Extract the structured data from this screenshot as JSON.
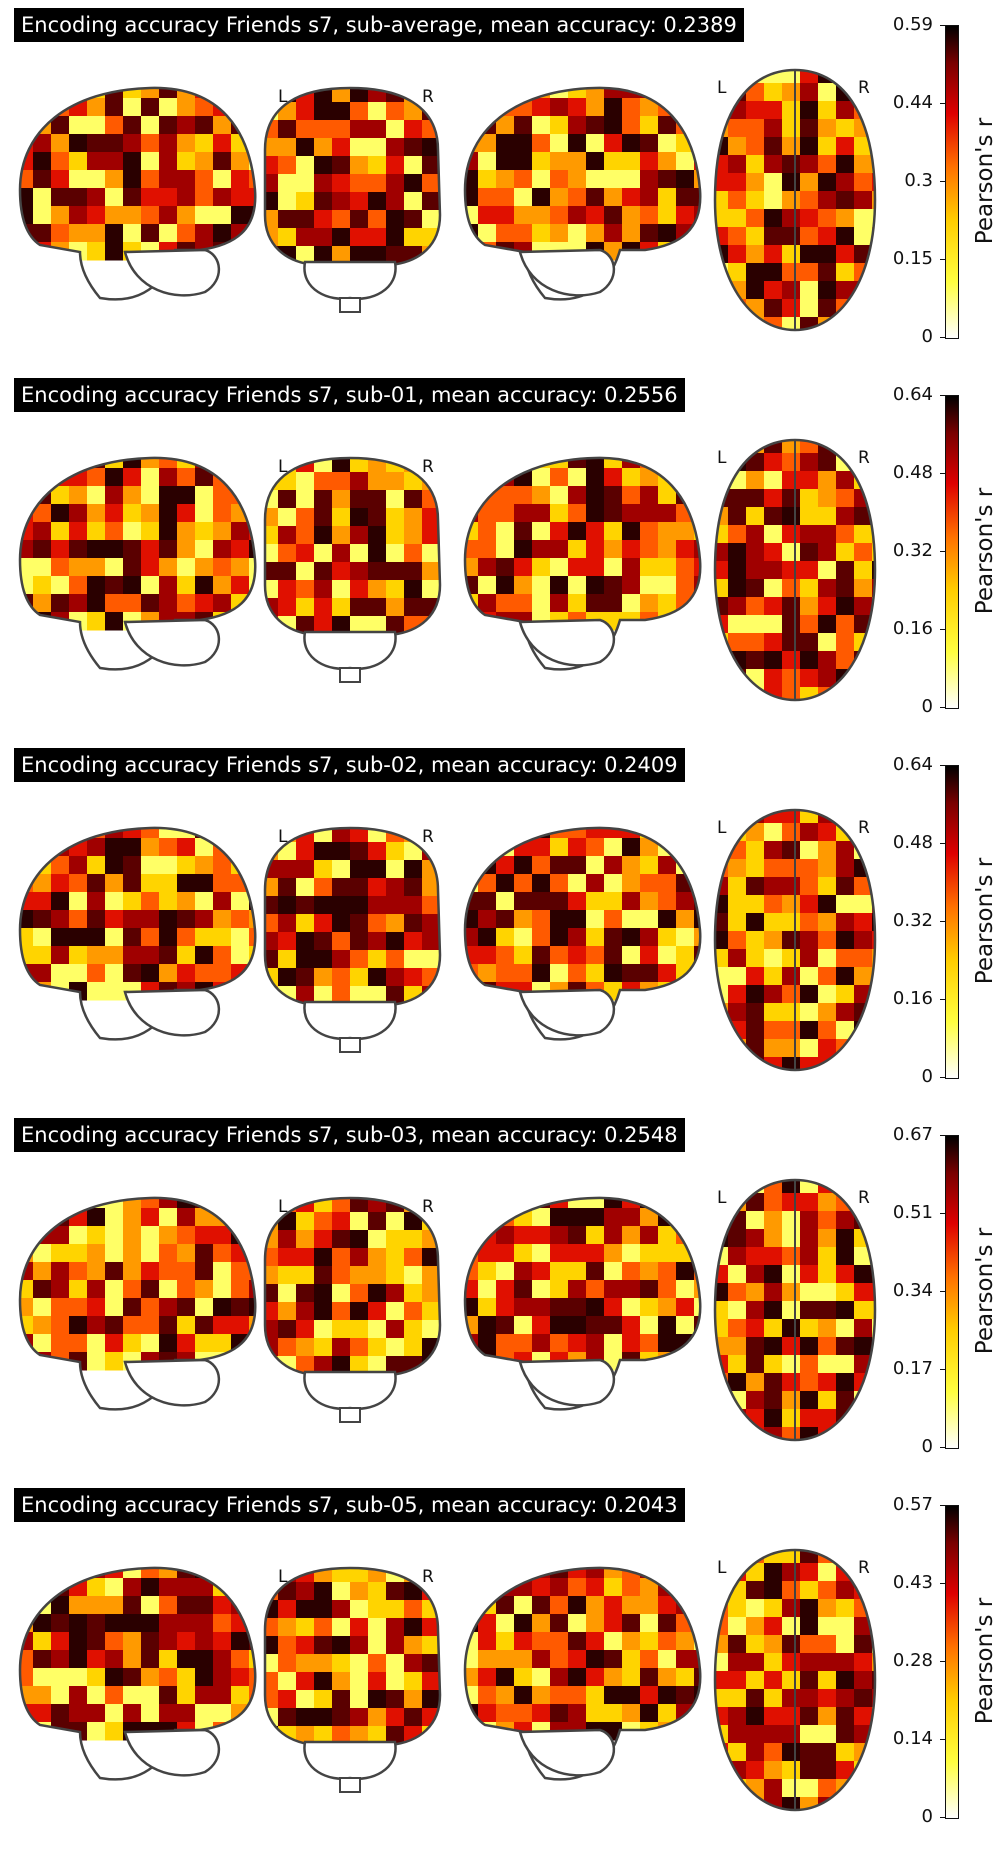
{
  "panels": [
    {
      "title": "Encoding accuracy Friends s7, sub-average, mean accuracy: 0.2389",
      "ticks": [
        "0.59",
        "0.44",
        "0.3",
        "0.15",
        "0"
      ]
    },
    {
      "title": "Encoding accuracy Friends s7, sub-01, mean accuracy: 0.2556",
      "ticks": [
        "0.64",
        "0.48",
        "0.32",
        "0.16",
        "0"
      ]
    },
    {
      "title": "Encoding accuracy Friends s7, sub-02, mean accuracy: 0.2409",
      "ticks": [
        "0.64",
        "0.48",
        "0.32",
        "0.16",
        "0"
      ]
    },
    {
      "title": "Encoding accuracy Friends s7, sub-03, mean accuracy: 0.2548",
      "ticks": [
        "0.67",
        "0.51",
        "0.34",
        "0.17",
        "0"
      ]
    },
    {
      "title": "Encoding accuracy Friends s7, sub-05, mean accuracy: 0.2043",
      "ticks": [
        "0.57",
        "0.43",
        "0.28",
        "0.14",
        "0"
      ]
    }
  ],
  "hemisphere_labels": {
    "left": "L",
    "right": "R"
  },
  "colorbar_label": "Pearson's r",
  "colormap": [
    "#ffffff",
    "#ffff40",
    "#ffcc00",
    "#ff7000",
    "#dd0000",
    "#7a0000",
    "#000000"
  ]
}
